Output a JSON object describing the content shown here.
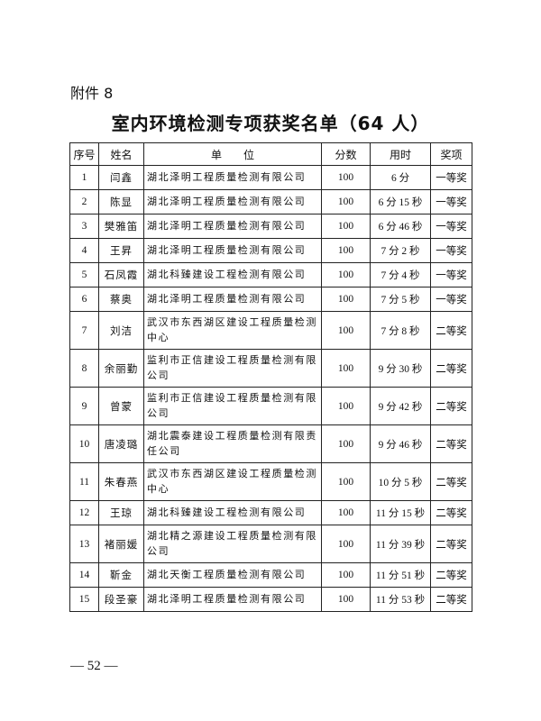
{
  "attachment": "附件 8",
  "title": "室内环境检测专项获奖名单（64 人）",
  "table": {
    "headers": [
      "序号",
      "姓名",
      "单　　位",
      "分数",
      "用时",
      "奖项"
    ],
    "rows": [
      {
        "no": "1",
        "name": "闫鑫",
        "unit": "湖北泽明工程质量检测有限公司",
        "score": "100",
        "time": "6 分",
        "award": "一等奖"
      },
      {
        "no": "2",
        "name": "陈显",
        "unit": "湖北泽明工程质量检测有限公司",
        "score": "100",
        "time": "6 分 15 秒",
        "award": "一等奖"
      },
      {
        "no": "3",
        "name": "樊雅笛",
        "unit": "湖北泽明工程质量检测有限公司",
        "score": "100",
        "time": "6 分 46 秒",
        "award": "一等奖"
      },
      {
        "no": "4",
        "name": "王昇",
        "unit": "湖北泽明工程质量检测有限公司",
        "score": "100",
        "time": "7 分 2 秒",
        "award": "一等奖"
      },
      {
        "no": "5",
        "name": "石凤霞",
        "unit": "湖北科臻建设工程检测有限公司",
        "score": "100",
        "time": "7 分 4 秒",
        "award": "一等奖"
      },
      {
        "no": "6",
        "name": "蔡奥",
        "unit": "湖北泽明工程质量检测有限公司",
        "score": "100",
        "time": "7 分 5 秒",
        "award": "一等奖"
      },
      {
        "no": "7",
        "name": "刘洁",
        "unit": "武汉市东西湖区建设工程质量检测中心",
        "score": "100",
        "time": "7 分 8 秒",
        "award": "二等奖"
      },
      {
        "no": "8",
        "name": "余丽勤",
        "unit": "监利市正信建设工程质量检测有限公司",
        "score": "100",
        "time": "9 分 30 秒",
        "award": "二等奖"
      },
      {
        "no": "9",
        "name": "曾蒙",
        "unit": "监利市正信建设工程质量检测有限公司",
        "score": "100",
        "time": "9 分 42 秒",
        "award": "二等奖"
      },
      {
        "no": "10",
        "name": "唐凌璐",
        "unit": "湖北震泰建设工程质量检测有限责任公司",
        "score": "100",
        "time": "9 分 46 秒",
        "award": "二等奖"
      },
      {
        "no": "11",
        "name": "朱春燕",
        "unit": "武汉市东西湖区建设工程质量检测中心",
        "score": "100",
        "time": "10 分 5 秒",
        "award": "二等奖"
      },
      {
        "no": "12",
        "name": "王琼",
        "unit": "湖北科臻建设工程检测有限公司",
        "score": "100",
        "time": "11 分 15 秒",
        "award": "二等奖"
      },
      {
        "no": "13",
        "name": "褚丽媛",
        "unit": "湖北精之源建设工程质量检测有限公司",
        "score": "100",
        "time": "11 分 39 秒",
        "award": "二等奖"
      },
      {
        "no": "14",
        "name": "靳金",
        "unit": "湖北天衡工程质量检测有限公司",
        "score": "100",
        "time": "11 分 51 秒",
        "award": "二等奖"
      },
      {
        "no": "15",
        "name": "段圣豪",
        "unit": "湖北泽明工程质量检测有限公司",
        "score": "100",
        "time": "11 分 53 秒",
        "award": "二等奖"
      }
    ]
  },
  "footer": "— 52 —"
}
